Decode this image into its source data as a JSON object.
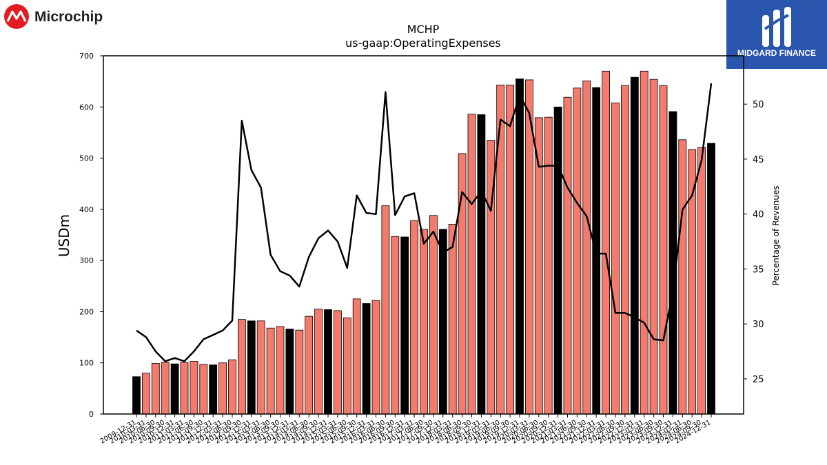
{
  "branding": {
    "left_logo_text": "Microchip",
    "right_logo_text": "MIDGARD FINANCE"
  },
  "colors": {
    "bar_quarter": "#f47a6c",
    "bar_annual": "#000000",
    "line": "#000000",
    "right_logo_bg": "#2a55ad",
    "microchip_red": "#e31b23"
  },
  "chart_data": {
    "type": "bar",
    "title": "MCHP",
    "subtitle": "us-gaap:OperatingExpenses",
    "ylabel": "USDm",
    "y2label": "Percentage of Revenues",
    "ylim": [
      0,
      700
    ],
    "y2lim": [
      21.8,
      54.4
    ],
    "yticks": [
      0,
      100,
      200,
      300,
      400,
      500,
      600,
      700
    ],
    "y2ticks": [
      25,
      30,
      35,
      40,
      45,
      50
    ],
    "grid": false,
    "legend": "none",
    "categories": [
      "2009-12-31",
      "2010-03-31",
      "2010-06-30",
      "2010-09-30",
      "2010-12-31",
      "2011-03-31",
      "2011-06-30",
      "2011-09-30",
      "2011-12-31",
      "2012-03-31",
      "2012-06-30",
      "2012-09-30",
      "2012-12-31",
      "2013-03-31",
      "2013-06-30",
      "2013-09-30",
      "2013-12-31",
      "2014-03-31",
      "2014-06-30",
      "2014-09-30",
      "2014-12-31",
      "2015-03-31",
      "2015-06-30",
      "2015-09-30",
      "2015-12-31",
      "2016-03-31",
      "2016-06-30",
      "2016-09-30",
      "2016-12-31",
      "2017-03-31",
      "2017-06-30",
      "2017-09-30",
      "2017-12-31",
      "2018-03-31",
      "2018-06-30",
      "2018-09-30",
      "2018-12-31",
      "2019-03-31",
      "2019-06-30",
      "2019-09-30",
      "2019-12-31",
      "2020-03-31",
      "2020-06-30",
      "2020-09-30",
      "2020-12-31",
      "2021-03-31",
      "2021-06-30",
      "2021-09-30",
      "2021-12-31",
      "2022-03-31",
      "2022-06-30",
      "2022-09-30",
      "2022-12-31",
      "2023-03-31",
      "2023-06-30",
      "2023-09-30",
      "2023-12-31",
      "2024-03-31",
      "2024-06-30",
      "2024-09-30",
      "2024-12-31"
    ],
    "series": [
      {
        "kind": "bar",
        "axis": "left",
        "values": [
          73,
          80,
          99,
          101,
          98,
          101,
          103,
          97,
          96,
          100,
          106,
          185,
          182,
          182,
          168,
          171,
          166,
          164,
          191,
          205,
          204,
          202,
          188,
          225,
          216,
          222,
          407,
          347,
          346,
          378,
          361,
          388,
          361,
          371,
          509,
          586,
          585,
          535,
          643,
          643,
          655,
          653,
          579,
          580,
          600,
          619,
          637,
          651,
          638,
          670,
          608,
          642,
          658,
          670,
          654,
          642,
          591,
          536,
          517,
          521,
          529
        ]
      },
      {
        "kind": "line",
        "axis": "right",
        "values": [
          29.4,
          28.8,
          27.5,
          26.6,
          26.9,
          26.6,
          27.5,
          28.6,
          29.0,
          29.4,
          30.3,
          48.5,
          44.0,
          42.4,
          36.3,
          34.8,
          34.4,
          33.4,
          36.1,
          37.8,
          38.5,
          37.5,
          35.1,
          41.7,
          40.1,
          40.0,
          51.1,
          39.9,
          41.6,
          41.9,
          37.3,
          38.4,
          36.5,
          37.0,
          42.0,
          40.9,
          42.1,
          40.3,
          48.6,
          48.0,
          50.8,
          49.2,
          44.3,
          44.4,
          44.4,
          42.4,
          41.0,
          39.8,
          36.4,
          36.4,
          31.0,
          31.0,
          30.6,
          30.1,
          28.6,
          28.5,
          33.0,
          40.4,
          41.7,
          44.9,
          51.9
        ]
      }
    ]
  }
}
